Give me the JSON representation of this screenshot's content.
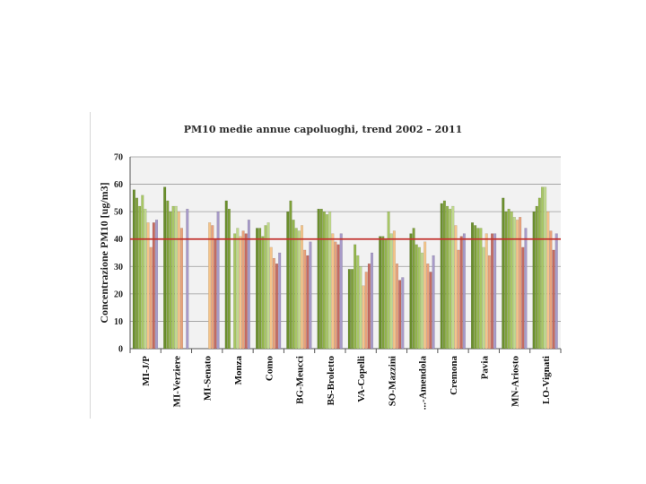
{
  "chart_data": {
    "type": "bar",
    "title": "PM10 medie annue capoluoghi, trend 2002 – 2011",
    "xlabel": "",
    "ylabel": "Concentrazione PM10 [ug/m3]",
    "ylim": [
      0,
      70
    ],
    "yticks": [
      0,
      10,
      20,
      30,
      40,
      50,
      60,
      70
    ],
    "grid": true,
    "reference_line": 40,
    "categories": [
      "MI-JP",
      "MI-Verziere",
      "MI-Senato",
      "Monza",
      "Como",
      "BG-Meucci",
      "BS-Broletto",
      "VA-Copelli",
      "SO-Mazzini",
      "...-Amendola",
      "Cremona",
      "Pavia",
      "MN-Ariosto",
      "LO-Vignati"
    ],
    "category_labels": [
      "MI-J/P",
      "MI-Verziere",
      "MI-Senato",
      "Monza",
      "Como",
      "BG-Meucci",
      "BS-Broletto",
      "VA-Copelli",
      "SO-Mazzini",
      "...-Amendola",
      "Cremona",
      "Pavia",
      "MN-Ariosto",
      "LO-Vignati"
    ],
    "series": [
      {
        "values": [
          58,
          59,
          null,
          54,
          44,
          50,
          51,
          29,
          41,
          42,
          53,
          46,
          55,
          50
        ]
      },
      {
        "values": [
          55,
          54,
          null,
          51,
          44,
          54,
          51,
          29,
          41,
          44,
          54,
          45,
          50,
          52
        ]
      },
      {
        "values": [
          52,
          50,
          null,
          null,
          41,
          47,
          50,
          38,
          40,
          38,
          52,
          44,
          51,
          55
        ]
      },
      {
        "values": [
          56,
          52,
          null,
          42,
          45,
          44,
          49,
          34,
          50,
          37,
          51,
          44,
          50,
          59
        ]
      },
      {
        "values": [
          51,
          52,
          null,
          44,
          46,
          43,
          50,
          30,
          42,
          35,
          52,
          37,
          48,
          59
        ]
      },
      {
        "values": [
          46,
          50,
          46,
          41,
          37,
          45,
          42,
          23,
          43,
          39,
          45,
          42,
          47,
          50
        ]
      },
      {
        "values": [
          37,
          44,
          45,
          43,
          33,
          36,
          39,
          28,
          31,
          31,
          36,
          34,
          48,
          43
        ]
      },
      {
        "values": [
          46,
          null,
          40,
          42,
          31,
          34,
          38,
          31,
          25,
          28,
          41,
          42,
          37,
          36
        ]
      },
      {
        "values": [
          47,
          51,
          50,
          47,
          35,
          39,
          42,
          35,
          26,
          34,
          42,
          42,
          44,
          42
        ]
      }
    ],
    "colors": [
      "#6a8e2c",
      "#7ea03a",
      "#93b54b",
      "#a8c765",
      "#c0d98c",
      "#f4c48a",
      "#e8a27b",
      "#c46b62",
      "#a79ac8"
    ],
    "plot_background": "#f2f2f2",
    "reference_line_color": "#c2302c"
  }
}
